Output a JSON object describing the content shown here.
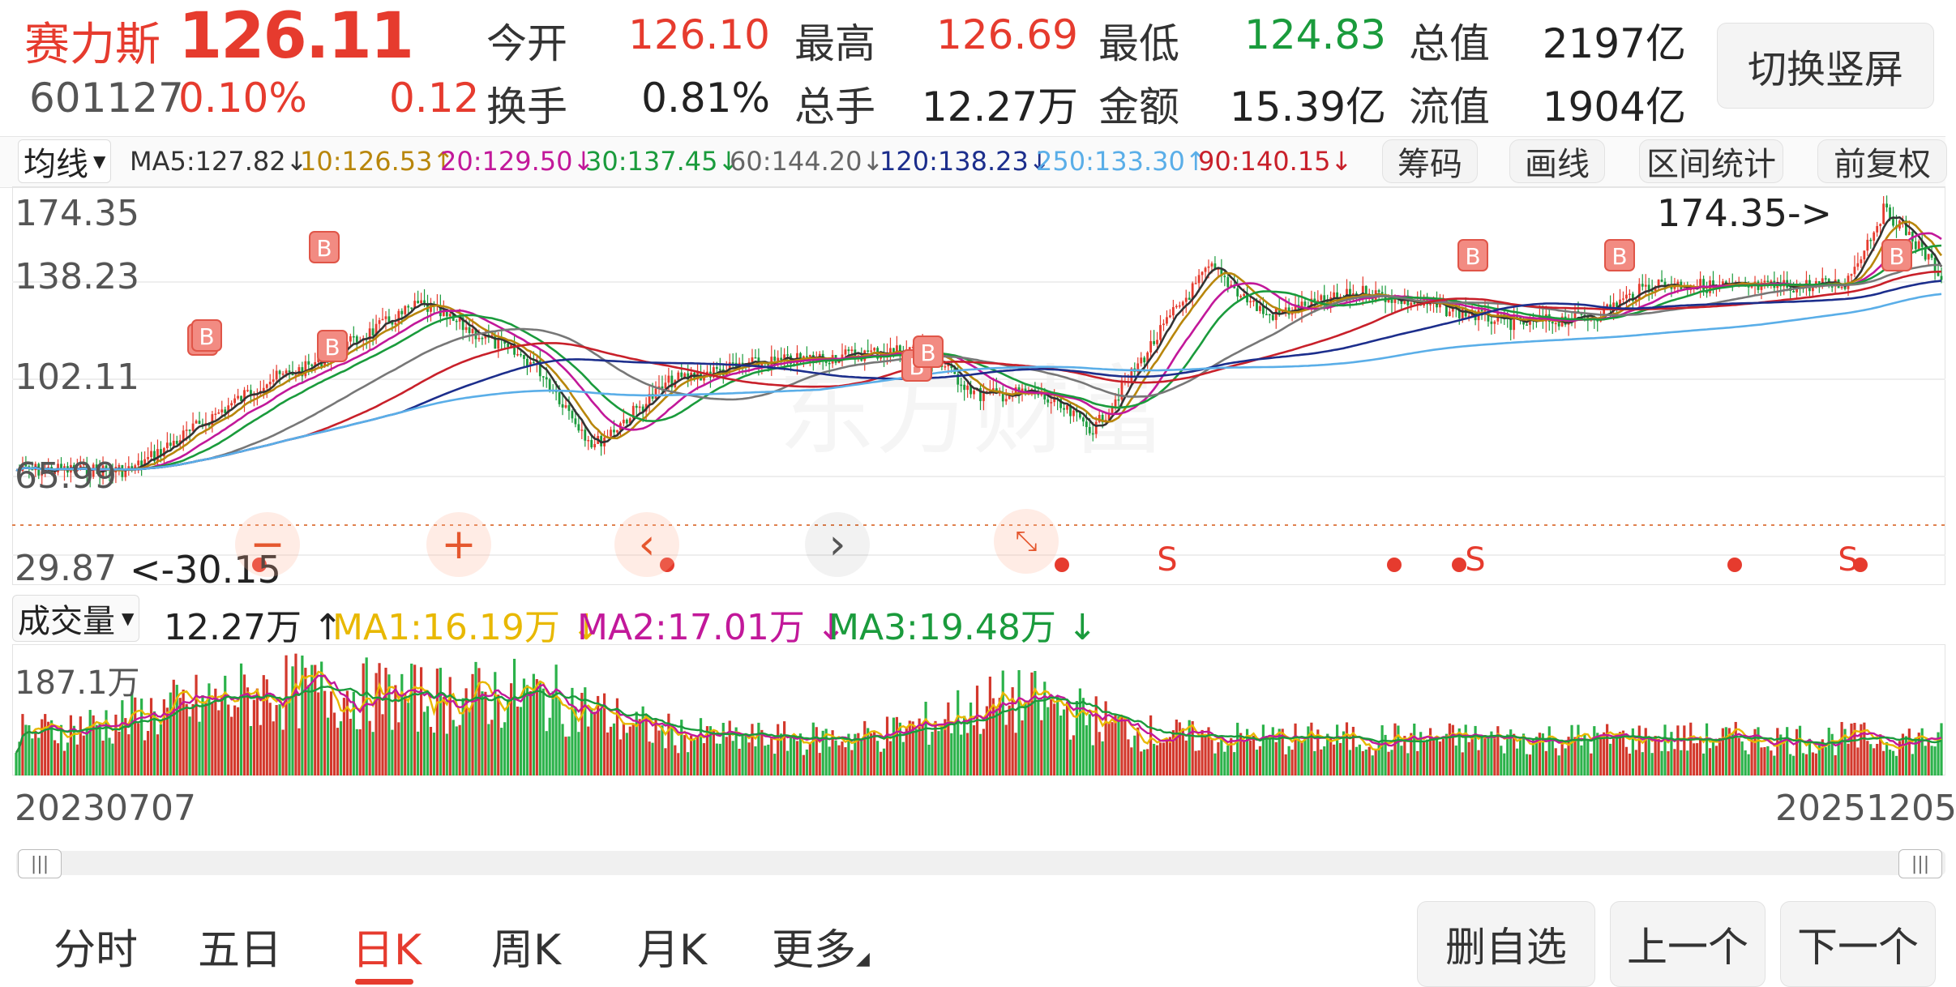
{
  "header": {
    "name": "赛力斯",
    "price": "126.11",
    "code": "601127",
    "change_pct": "0.10%",
    "change": "0.12",
    "quotes": [
      {
        "label": "今开",
        "value": "126.10",
        "color": "red"
      },
      {
        "label": "最高",
        "value": "126.69",
        "color": "red"
      },
      {
        "label": "最低",
        "value": "124.83",
        "color": "green"
      },
      {
        "label": "总值",
        "value": "2197亿",
        "color": "dark"
      },
      {
        "label": "换手",
        "value": "0.81%",
        "color": "dark"
      },
      {
        "label": "总手",
        "value": "12.27万",
        "color": "dark"
      },
      {
        "label": "金额",
        "value": "15.39亿",
        "color": "dark"
      },
      {
        "label": "流值",
        "value": "1904亿",
        "color": "dark"
      }
    ],
    "switch_button": "切换竖屏"
  },
  "ma_bar": {
    "selector": "均线",
    "items": [
      {
        "text": "MA5:127.82↓",
        "color": "#333333"
      },
      {
        "text": "10:126.53↑",
        "color": "#b8860b"
      },
      {
        "text": "20:129.50↓",
        "color": "#c2189a"
      },
      {
        "text": "30:137.45↓",
        "color": "#1a9b3c"
      },
      {
        "text": "60:144.20↓",
        "color": "#666666"
      },
      {
        "text": "120:138.23↓",
        "color": "#1c2e8c"
      },
      {
        "text": "250:133.30↑",
        "color": "#5aaee8"
      },
      {
        "text": "90:140.15↓",
        "color": "#c8202a"
      }
    ],
    "buttons": [
      "筹码",
      "画线",
      "区间统计",
      "前复权"
    ]
  },
  "price_chart": {
    "y_labels": [
      "174.35",
      "138.23",
      "102.11",
      "65.99",
      "29.87"
    ],
    "max_annotation": "174.35->",
    "min_annotation": "<-30.15",
    "watermark": "东方财富",
    "signals": [
      "B",
      "B",
      "B",
      "B",
      "B",
      "B",
      "B",
      "B",
      "B",
      "S",
      "S",
      "S"
    ],
    "controls": [
      "−",
      "+",
      "‹",
      "›"
    ],
    "compress_icon": "compress-icon"
  },
  "volume": {
    "selector": "成交量",
    "current": "12.27万 ↑",
    "ma1": "MA1:16.19万 ↓",
    "ma2": "MA2:17.01万 ↓",
    "ma3": "MA3:19.48万 ↓",
    "max_label": "187.1万"
  },
  "dates": {
    "start": "20230707",
    "end": "20251205"
  },
  "tabs": [
    "分时",
    "五日",
    "日K",
    "周K",
    "月K",
    "更多"
  ],
  "active_tab": "日K",
  "actions": [
    "删自选",
    "上一个",
    "下一个"
  ]
}
